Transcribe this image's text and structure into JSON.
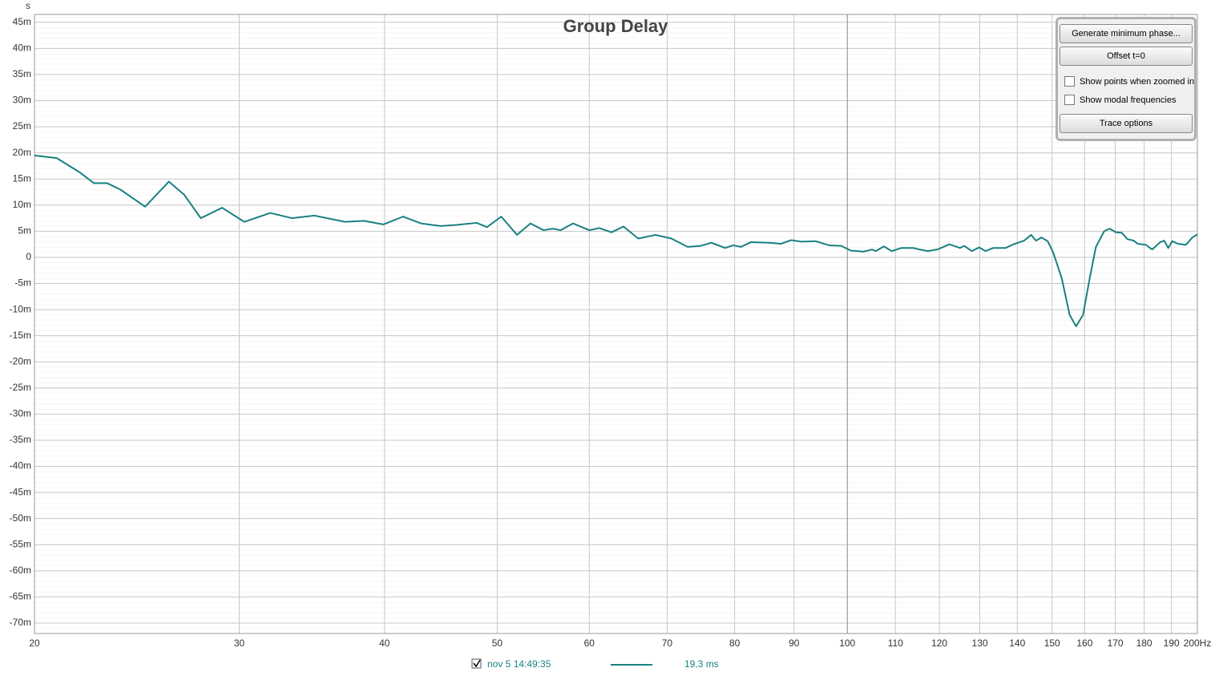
{
  "chart_data": {
    "type": "line",
    "title": "Group Delay",
    "y_label": "s",
    "x": [
      20,
      20.9,
      21.9,
      22.5,
      23.1,
      23.7,
      24.9,
      26.1,
      26.9,
      27.8,
      29.0,
      30.3,
      31.9,
      33.3,
      34.8,
      37.0,
      38.4,
      39.9,
      41.5,
      43.0,
      44.7,
      46.1,
      48.0,
      49.0,
      50.4,
      52.0,
      53.4,
      54.8,
      55.8,
      56.7,
      58.1,
      60.0,
      61.2,
      62.7,
      64.2,
      66.1,
      68.4,
      70.6,
      72.9,
      74.8,
      76.4,
      78.5,
      79.8,
      81.0,
      82.6,
      85.7,
      87.7,
      89.5,
      91.3,
      93.9,
      96.5,
      98.8,
      100.7,
      103.3,
      105.0,
      105.8,
      107.5,
      109.2,
      111.3,
      114.0,
      115.4,
      117.3,
      119.5,
      122.4,
      125.0,
      126.0,
      128.0,
      129.8,
      131.5,
      133.5,
      136.8,
      139.0,
      141.9,
      143.9,
      145.3,
      146.9,
      148.7,
      150.3,
      152.9,
      155.3,
      157.3,
      159.5,
      161.6,
      163.6,
      166.3,
      168.1,
      170.2,
      172.2,
      174.1,
      176.3,
      177.7,
      180.6,
      182.9,
      185.8,
      187.3,
      188.8,
      190.3,
      192.4,
      195.5,
      198.0,
      200
    ],
    "series": [
      {
        "name": "nov 5 14:49:35",
        "color": "#1a8080",
        "values": [
          0.0195,
          0.019,
          0.0162,
          0.0142,
          0.0142,
          0.013,
          0.0097,
          0.0145,
          0.012,
          0.0075,
          0.0095,
          0.0068,
          0.0085,
          0.0075,
          0.008,
          0.0068,
          0.007,
          0.0063,
          0.0078,
          0.0065,
          0.006,
          0.0062,
          0.0066,
          0.0058,
          0.0078,
          0.0043,
          0.0065,
          0.0052,
          0.0055,
          0.0052,
          0.0065,
          0.0052,
          0.0056,
          0.0048,
          0.0059,
          0.0036,
          0.0043,
          0.0036,
          0.002,
          0.0022,
          0.0028,
          0.0018,
          0.0023,
          0.002,
          0.0029,
          0.0028,
          0.0026,
          0.0033,
          0.003,
          0.0031,
          0.0023,
          0.0022,
          0.0013,
          0.0011,
          0.0015,
          0.0012,
          0.0021,
          0.0012,
          0.0018,
          0.0018,
          0.0015,
          0.0012,
          0.0015,
          0.0025,
          0.0018,
          0.0022,
          0.0012,
          0.0019,
          0.0012,
          0.0018,
          0.0018,
          0.0025,
          0.0032,
          0.0043,
          0.0032,
          0.0038,
          0.0031,
          0.001,
          -0.004,
          -0.011,
          -0.0132,
          -0.011,
          -0.004,
          0.002,
          0.005,
          0.0055,
          0.0048,
          0.0047,
          0.0035,
          0.0032,
          0.0026,
          0.0024,
          0.0015,
          0.0029,
          0.0032,
          0.0018,
          0.0031,
          0.0026,
          0.0024,
          0.0038,
          0.0044
        ]
      }
    ],
    "cursor_value": "19,3 ms",
    "xlim": [
      20,
      200
    ],
    "log_x": true,
    "xticks": [
      20,
      30,
      40,
      50,
      60,
      70,
      80,
      90,
      100,
      110,
      120,
      130,
      140,
      150,
      160,
      170,
      180,
      190,
      {
        "value": 200,
        "label": "200Hz"
      }
    ],
    "ylim": [
      -0.072,
      0.0465
    ],
    "yticks": [
      {
        "value": 0.045,
        "label": "45m"
      },
      {
        "value": 0.04,
        "label": "40m"
      },
      {
        "value": 0.035,
        "label": "35m"
      },
      {
        "value": 0.03,
        "label": "30m"
      },
      {
        "value": 0.025,
        "label": "25m"
      },
      {
        "value": 0.02,
        "label": "20m"
      },
      {
        "value": 0.015,
        "label": "15m"
      },
      {
        "value": 0.01,
        "label": "10m"
      },
      {
        "value": 0.005,
        "label": "5m"
      },
      0,
      {
        "value": -0.005,
        "label": "-5m"
      },
      {
        "value": -0.01,
        "label": "-10m"
      },
      {
        "value": -0.015,
        "label": "-15m"
      },
      {
        "value": -0.02,
        "label": "-20m"
      },
      {
        "value": -0.025,
        "label": "-25m"
      },
      {
        "value": -0.03,
        "label": "-30m"
      },
      {
        "value": -0.035,
        "label": "-35m"
      },
      {
        "value": -0.04,
        "label": "-40m"
      },
      {
        "value": -0.045,
        "label": "-45m"
      },
      {
        "value": -0.05,
        "label": "-50m"
      },
      {
        "value": -0.055,
        "label": "-55m"
      },
      {
        "value": -0.06,
        "label": "-60m"
      },
      {
        "value": -0.065,
        "label": "-65m"
      },
      {
        "value": -0.07,
        "label": "-70m"
      }
    ],
    "grid": true
  },
  "controls": {
    "buttons": [
      "Generate minimum phase...",
      "Offset t=0"
    ],
    "checkboxes": [
      "Show points when zoomed in",
      "Show modal frequencies"
    ],
    "trace_button": "Trace options"
  }
}
